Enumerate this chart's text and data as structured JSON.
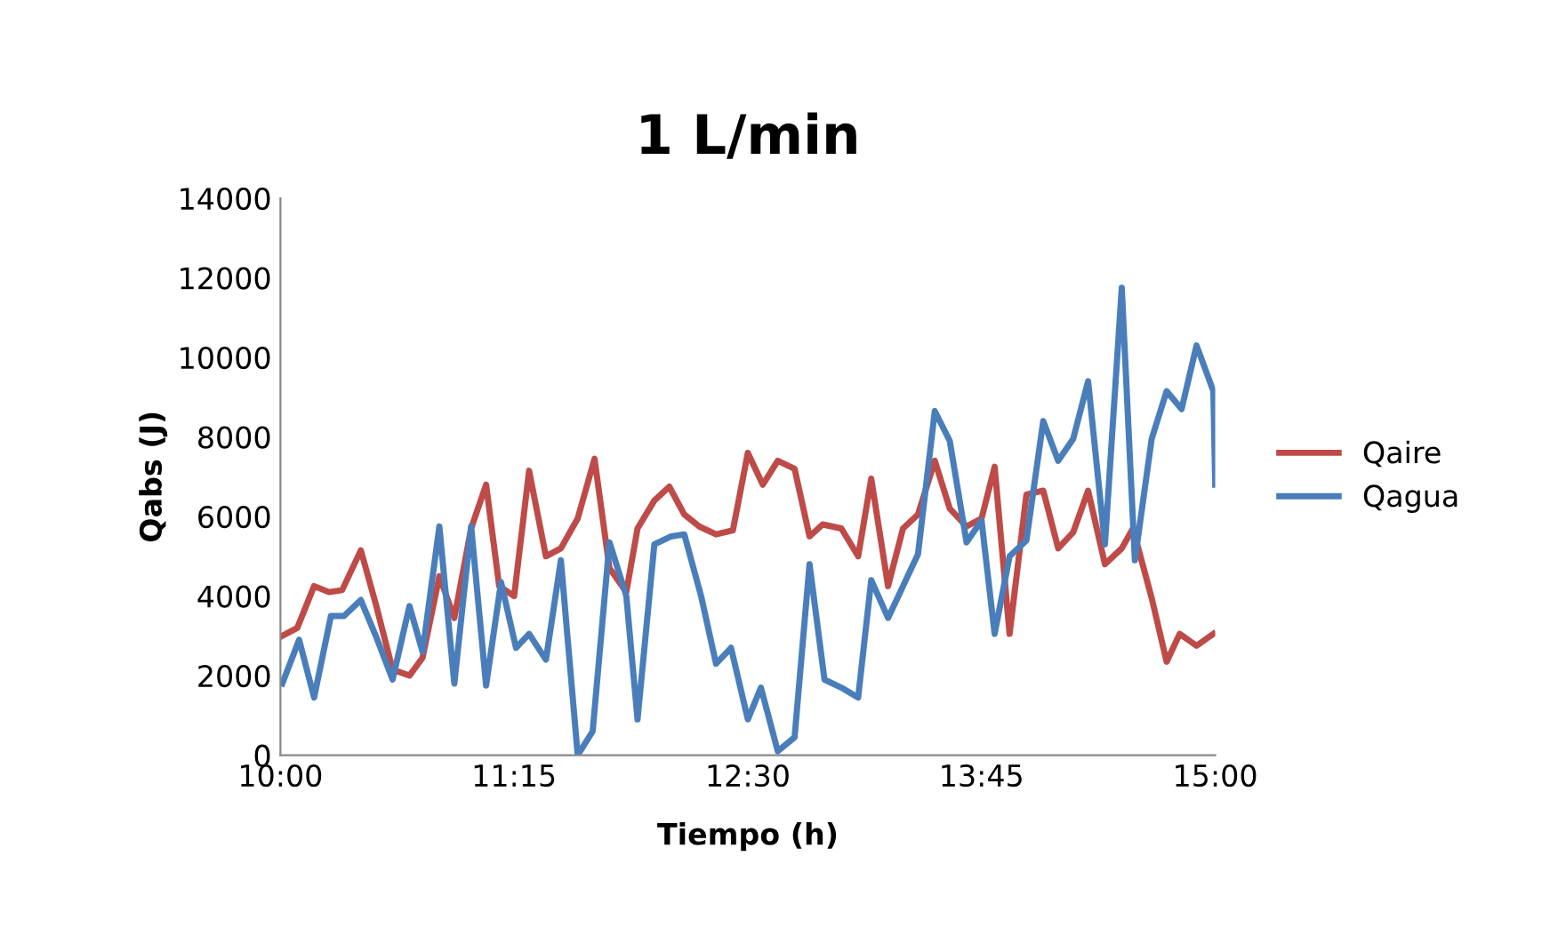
{
  "chart_data": {
    "type": "line",
    "title": "1 L/min",
    "xlabel": "Tiempo (h)",
    "ylabel": "Qabs (J)",
    "xlim": [
      10,
      15
    ],
    "xticks": [
      {
        "value": 10,
        "label": "10:00"
      },
      {
        "value": 11.25,
        "label": "11:15"
      },
      {
        "value": 12.5,
        "label": "12:30"
      },
      {
        "value": 13.75,
        "label": "13:45"
      },
      {
        "value": 15,
        "label": "15:00"
      }
    ],
    "ylim": [
      0,
      14000
    ],
    "yticks": [
      0,
      2000,
      4000,
      6000,
      8000,
      10000,
      12000,
      14000
    ],
    "grid": false,
    "legend": "right",
    "marker": "none",
    "line_style": "solid",
    "series": [
      {
        "name": "Qaire",
        "color": "#be4b48",
        "x": [
          10.01,
          10.09,
          10.18,
          10.26,
          10.33,
          10.43,
          10.51,
          10.6,
          10.69,
          10.76,
          10.85,
          10.93,
          11.02,
          11.1,
          11.17,
          11.25,
          11.33,
          11.42,
          11.5,
          11.59,
          11.68,
          11.76,
          11.85,
          11.91,
          12.0,
          12.08,
          12.16,
          12.24,
          12.33,
          12.42,
          12.5,
          12.58,
          12.66,
          12.75,
          12.83,
          12.9,
          13.0,
          13.09,
          13.16,
          13.25,
          13.33,
          13.41,
          13.5,
          13.58,
          13.67,
          13.75,
          13.82,
          13.9,
          13.99,
          14.08,
          14.16,
          14.24,
          14.32,
          14.41,
          14.5,
          14.56,
          14.66,
          14.74,
          14.81,
          14.9,
          14.99
        ],
        "values": [
          3000,
          3200,
          4250,
          4100,
          4150,
          5150,
          3800,
          2150,
          2000,
          2450,
          4500,
          3450,
          5700,
          6800,
          4250,
          4000,
          7150,
          5000,
          5200,
          5950,
          7450,
          4700,
          4100,
          5700,
          6400,
          6750,
          6050,
          5750,
          5550,
          5650,
          7600,
          6800,
          7400,
          7200,
          5500,
          5800,
          5700,
          5000,
          6950,
          4250,
          5700,
          6050,
          7400,
          6200,
          5750,
          5950,
          7250,
          3050,
          6550,
          6650,
          5200,
          5600,
          6650,
          4800,
          5200,
          5700,
          3950,
          2350,
          3050,
          2750,
          3050
        ]
      },
      {
        "name": "Qagua",
        "color": "#4a7ebb",
        "x": [
          10.01,
          10.1,
          10.18,
          10.27,
          10.34,
          10.43,
          10.51,
          10.6,
          10.69,
          10.76,
          10.85,
          10.93,
          11.02,
          11.1,
          11.18,
          11.26,
          11.33,
          11.42,
          11.5,
          11.59,
          11.67,
          11.76,
          11.85,
          11.91,
          12.0,
          12.09,
          12.16,
          12.25,
          12.33,
          12.41,
          12.5,
          12.57,
          12.66,
          12.75,
          12.83,
          12.91,
          13.0,
          13.09,
          13.16,
          13.25,
          13.33,
          13.41,
          13.5,
          13.58,
          13.67,
          13.75,
          13.82,
          13.9,
          13.99,
          14.08,
          14.16,
          14.24,
          14.32,
          14.41,
          14.5,
          14.57,
          14.66,
          14.74,
          14.82,
          14.9,
          14.99,
          15.0
        ],
        "values": [
          1800,
          2900,
          1450,
          3500,
          3500,
          3900,
          3000,
          1900,
          3750,
          2600,
          5750,
          1800,
          5750,
          1750,
          4350,
          2700,
          3050,
          2400,
          4900,
          0,
          600,
          5350,
          4000,
          900,
          5300,
          5500,
          5550,
          4000,
          2300,
          2700,
          900,
          1700,
          100,
          450,
          4800,
          1900,
          1700,
          1450,
          4400,
          3450,
          4250,
          5050,
          8650,
          7900,
          5350,
          5900,
          3050,
          5000,
          5400,
          8400,
          7400,
          7950,
          9400,
          5300,
          11750,
          4900,
          7950,
          9150,
          8700,
          10300,
          9150,
          6800
        ]
      }
    ]
  }
}
